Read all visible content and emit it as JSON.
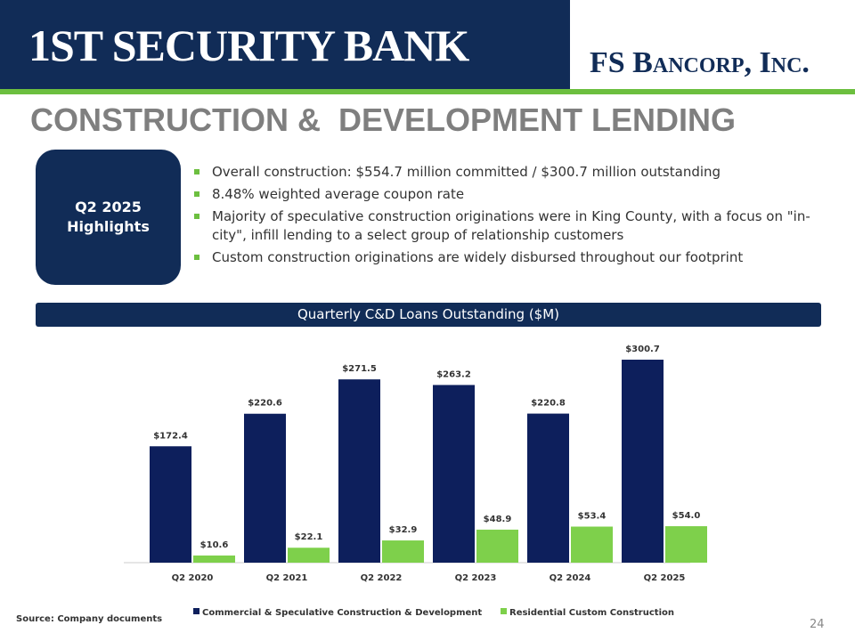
{
  "header": {
    "bank_logo": "1st Security Bank",
    "company_logo": "FS Bancorp, Inc.",
    "title": "CONSTRUCTION &  DEVELOPMENT LENDING"
  },
  "highlights": {
    "label": "Q2 2025 Highlights",
    "bullets": [
      "Overall construction: $554.7 million committed / $300.7 million outstanding",
      "8.48% weighted average coupon rate",
      "Majority of speculative construction originations were in King County, with a focus on \"in-city\", infill lending to a select group of  relationship customers",
      "Custom construction originations are widely disbursed throughout our footprint"
    ]
  },
  "chart_data": {
    "type": "bar",
    "title": "Quarterly C&D Loans Outstanding ($M)",
    "categories": [
      "Q2 2020",
      "Q2 2021",
      "Q2 2022",
      "Q2 2023",
      "Q2 2024",
      "Q2 2025"
    ],
    "series": [
      {
        "name": "Commercial & Speculative Construction & Development",
        "color": "#0d1f5c",
        "values": [
          172.4,
          220.6,
          271.5,
          263.2,
          220.8,
          300.7
        ],
        "value_labels": [
          "$172.4",
          "$220.6",
          "$271.5",
          "$263.2",
          "$220.8",
          "$300.7"
        ]
      },
      {
        "name": "Residential Custom Construction",
        "color": "#7ed04b",
        "values": [
          10.6,
          22.1,
          32.9,
          48.9,
          53.4,
          54.0
        ],
        "value_labels": [
          "$10.6",
          "$22.1",
          "$32.9",
          "$48.9",
          "$53.4",
          "$54.0"
        ]
      }
    ]
  },
  "footer": {
    "source": "Source: Company documents",
    "page_number": "24"
  }
}
